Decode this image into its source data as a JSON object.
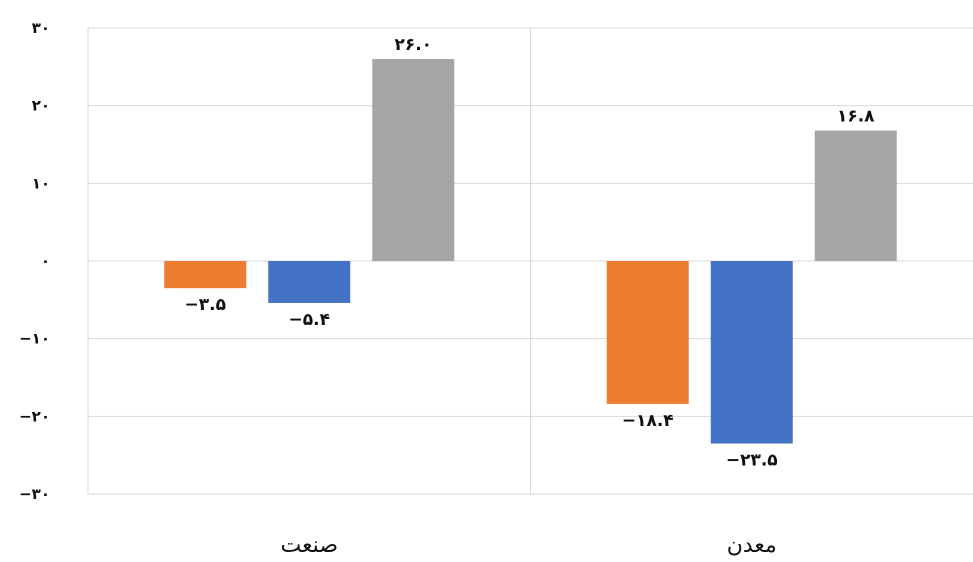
{
  "chart_data": {
    "type": "bar",
    "categories": [
      "صنعت",
      "معدن"
    ],
    "series": [
      {
        "color": "#ED7D31",
        "values": [
          -3.5,
          -18.4
        ],
        "labels": [
          "−۳.۵",
          "−۱۸.۴"
        ]
      },
      {
        "color": "#4472C4",
        "values": [
          -5.4,
          -23.5
        ],
        "labels": [
          "−۵.۴",
          "−۲۳.۵"
        ]
      },
      {
        "color": "#A5A5A5",
        "values": [
          26.0,
          16.8
        ],
        "labels": [
          "۲۶.۰",
          "۱۶.۸"
        ]
      }
    ],
    "yticks": [
      {
        "value": 30,
        "label": "۳۰"
      },
      {
        "value": 20,
        "label": "۲۰"
      },
      {
        "value": 10,
        "label": "۱۰"
      },
      {
        "value": 0,
        "label": "۰"
      },
      {
        "value": -10,
        "label": "−۱۰"
      },
      {
        "value": -20,
        "label": "−۲۰"
      },
      {
        "value": -30,
        "label": "−۳۰"
      }
    ],
    "ylim": [
      -30,
      30
    ],
    "grid": true,
    "title": "",
    "xlabel": "",
    "ylabel": ""
  }
}
